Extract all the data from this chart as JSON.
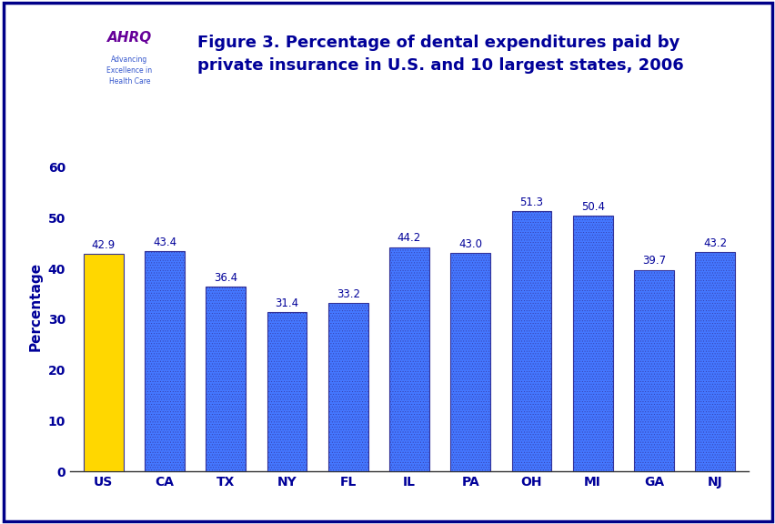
{
  "categories": [
    "US",
    "CA",
    "TX",
    "NY",
    "FL",
    "IL",
    "PA",
    "OH",
    "MI",
    "GA",
    "NJ"
  ],
  "values": [
    42.9,
    43.4,
    36.4,
    31.4,
    33.2,
    44.2,
    43.0,
    51.3,
    50.4,
    39.7,
    43.2
  ],
  "bar_colors": [
    "#FFD700",
    "#4477FF",
    "#4477FF",
    "#4477FF",
    "#4477FF",
    "#4477FF",
    "#4477FF",
    "#4477FF",
    "#4477FF",
    "#4477FF",
    "#4477FF"
  ],
  "bar_edge_color": "#333399",
  "title_line1": "Figure 3. Percentage of dental expenditures paid by",
  "title_line2": "private insurance in U.S. and 10 largest states, 2006",
  "ylabel": "Percentage",
  "ylim": [
    0,
    65
  ],
  "yticks": [
    0,
    10,
    20,
    30,
    40,
    50,
    60
  ],
  "value_label_color": "#000099",
  "axis_label_color": "#000099",
  "title_color": "#000099",
  "background_color": "#FFFFFF",
  "header_line_color": "#000088",
  "border_color": "#000088",
  "hatch_color": "#AABBFF"
}
